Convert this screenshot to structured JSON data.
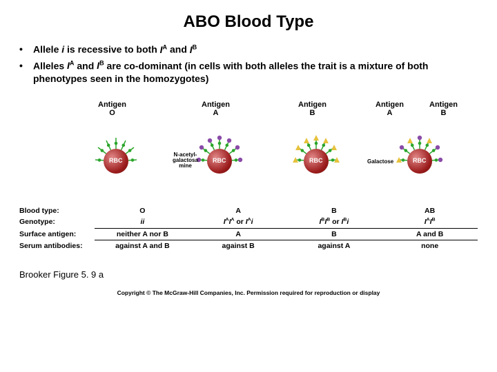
{
  "title": "ABO Blood Type",
  "bullets": [
    {
      "pre": "Allele ",
      "i1": "i",
      "mid1": " is recessive to both ",
      "ia": "I",
      "supA": "A",
      "mid2": " and ",
      "ib": "I",
      "supB": "B",
      "post": ""
    },
    {
      "pre": "Alleles ",
      "i1": "I",
      "supA": "A",
      "mid1": " and ",
      "i2": "I",
      "supB": "B",
      "post": " are co-dominant (in cells with both alleles the trait is a mixture of both phenotypes seen in the homozygotes)"
    }
  ],
  "antigen_labels": {
    "g0": "Antigen\nO",
    "g1": "Antigen\nA",
    "g2": "Antigen\nB",
    "g3a": "Antigen\nA",
    "g3b": "Antigen\nB"
  },
  "aux": {
    "nacetyl": "N-acetyl-\ngalactosa\nmine",
    "galactose": "Galactose"
  },
  "rbc_label": "RBC",
  "colors": {
    "stem": "#2aa52a",
    "dotGreen": "#2aa52a",
    "dotPurple": "#8a4aa8",
    "triYellow": "#e6c23c",
    "rbcDark": "#9a1b1b"
  },
  "table": {
    "headers": [
      "Blood type:",
      "Genotype:",
      "Surface antigen:",
      "Serum antibodies:"
    ],
    "cols": [
      "O",
      "A",
      "B",
      "AB"
    ],
    "genotype": [
      "ii",
      "I^A I^A or I^A i",
      "I^B I^B or I^B i",
      "I^A I^B"
    ],
    "surface": [
      "neither A nor B",
      "A",
      "B",
      "A and B"
    ],
    "serum": [
      "against A and B",
      "against B",
      "against A",
      "none"
    ]
  },
  "figref": "Brooker Figure 5. 9 a",
  "copyright": "Copyright © The McGraw-Hill Companies, Inc. Permission required for reproduction or display"
}
